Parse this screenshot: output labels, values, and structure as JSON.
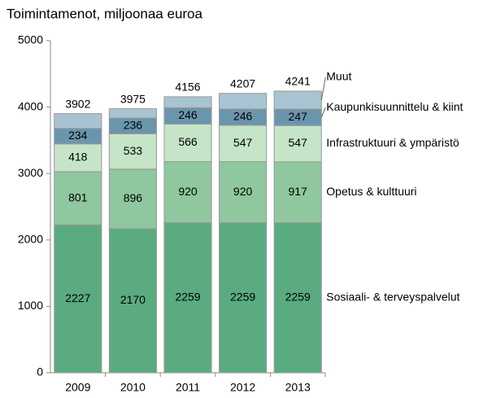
{
  "chart_data": {
    "type": "stacked_bar",
    "title": "Toimintamenot, miljoonaa euroa",
    "categories": [
      "2009",
      "2010",
      "2011",
      "2012",
      "2013"
    ],
    "series": [
      {
        "name": "Sosiaali- & terveyspalvelut",
        "color": "#5aab80",
        "values": [
          2227,
          2170,
          2259,
          2259,
          2259
        ]
      },
      {
        "name": "Opetus & kulttuuri",
        "color": "#8fc79e",
        "values": [
          801,
          896,
          920,
          920,
          917
        ]
      },
      {
        "name": "Infrastruktuuri & ympäristö",
        "color": "#c6e4c8",
        "values": [
          418,
          533,
          566,
          547,
          547
        ]
      },
      {
        "name": "Kaupunkisuunnittelu & kiint",
        "color": "#6a96ad",
        "values": [
          234,
          236,
          246,
          246,
          247
        ]
      },
      {
        "name": "Muut",
        "color": "#a9c4d1",
        "values": [
          222,
          140,
          165,
          235,
          271
        ]
      }
    ],
    "totals": [
      3902,
      3975,
      4156,
      4207,
      4241
    ],
    "ylim": [
      0,
      5000
    ],
    "yticks": [
      0,
      1000,
      2000,
      3000,
      4000,
      5000
    ],
    "grid": false
  }
}
